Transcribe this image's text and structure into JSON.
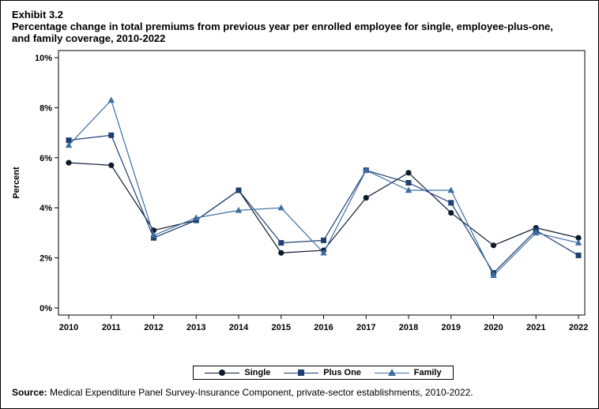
{
  "header": {
    "exhibit": "Exhibit 3.2",
    "title": "Percentage change in total premiums from previous year per enrolled employee for single, employee-plus-one,\nand family coverage, 2010-2022"
  },
  "chart_data": {
    "type": "line",
    "x": [
      "2010",
      "2011",
      "2012",
      "2013",
      "2014",
      "2015",
      "2016",
      "2017",
      "2018",
      "2019",
      "2020",
      "2021",
      "2022"
    ],
    "ylabel": "Percent",
    "xlabel": "",
    "ylim": [
      0,
      10
    ],
    "yticks": [
      "0%",
      "2%",
      "4%",
      "6%",
      "8%",
      "10%"
    ],
    "grid": false,
    "legend_position": "bottom",
    "series": [
      {
        "name": "Single",
        "color": "#0d1b2e",
        "marker": "circle",
        "values": [
          5.8,
          5.7,
          3.1,
          3.5,
          4.7,
          2.2,
          2.3,
          4.4,
          5.4,
          3.8,
          2.5,
          3.2,
          2.8
        ]
      },
      {
        "name": "Plus One",
        "color": "#1f3f73",
        "marker": "square",
        "values": [
          6.7,
          6.9,
          2.8,
          3.5,
          4.7,
          2.6,
          2.7,
          5.5,
          5.0,
          4.2,
          1.4,
          3.1,
          2.1
        ]
      },
      {
        "name": "Family",
        "color": "#3d6fa3",
        "marker": "triangle",
        "values": [
          6.5,
          8.3,
          2.9,
          3.6,
          3.9,
          4.0,
          2.2,
          5.5,
          4.7,
          4.7,
          1.3,
          3.0,
          2.6
        ]
      }
    ]
  },
  "source": {
    "label": "Source:",
    "text": " Medical Expenditure Panel Survey-Insurance Component, private-sector establishments, 2010-2022."
  }
}
